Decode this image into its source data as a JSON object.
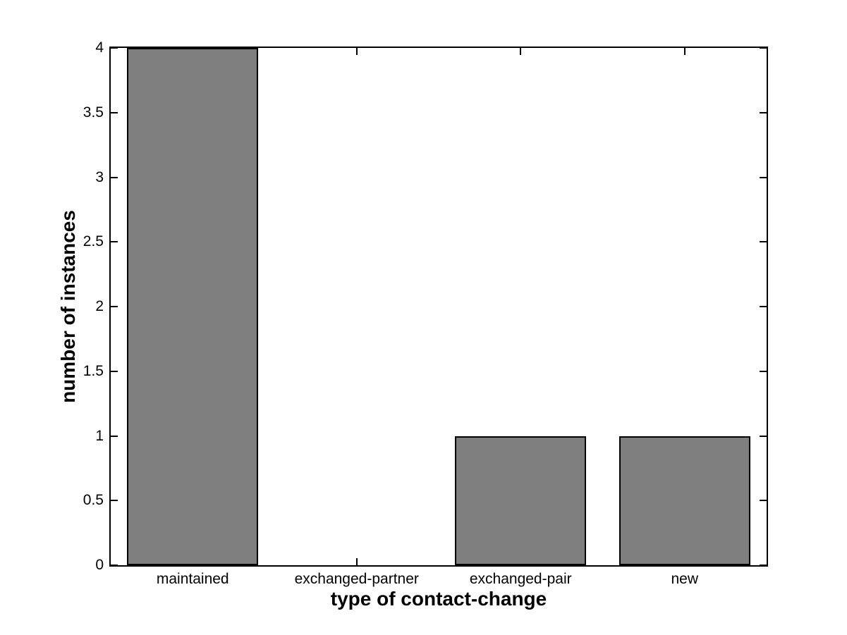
{
  "figure": {
    "background": "#ffffff"
  },
  "chart_data": {
    "type": "bar",
    "title": "",
    "xlabel": "type of contact-change",
    "ylabel": "number of instances",
    "categories": [
      "maintained",
      "exchanged-partner",
      "exchanged-pair",
      "new"
    ],
    "values": [
      4,
      0,
      1,
      1
    ],
    "ylim": [
      0,
      4
    ],
    "yticks": [
      0,
      0.5,
      1,
      1.5,
      2,
      2.5,
      3,
      3.5,
      4
    ],
    "ytick_labels": [
      "0",
      "0.5",
      "1",
      "1.5",
      "2",
      "2.5",
      "3",
      "3.5",
      "4"
    ],
    "bar_color": "#7e7e7e",
    "bar_edge_color": "#000000",
    "axis_color": "#000000",
    "bar_width_fraction": 0.8,
    "grid": false,
    "legend": null,
    "tick_direction": "in",
    "box": true
  }
}
